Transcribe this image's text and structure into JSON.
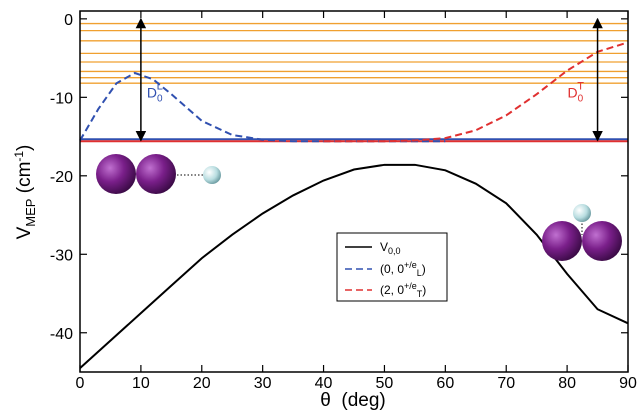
{
  "chart_data": {
    "type": "line",
    "xlabel": [
      "θ",
      "  (deg)"
    ],
    "ylabel": [
      "V",
      "MEP",
      " (cm",
      "-1",
      ")"
    ],
    "xlim": [
      0,
      90
    ],
    "ylim": [
      -45,
      1
    ],
    "xticks": [
      0,
      10,
      20,
      30,
      40,
      50,
      60,
      70,
      80,
      90
    ],
    "yticks": [
      0,
      -10,
      -20,
      -30,
      -40
    ],
    "horizontal_levels": {
      "color": "#f0a030",
      "values": [
        -0.6,
        -1.5,
        -2.8,
        -4.4,
        -5.5,
        -6.7,
        -7.5,
        -8.2
      ]
    },
    "reference_lines": [
      {
        "color": "#3050b0",
        "value": -15.35
      },
      {
        "color": "#e03030",
        "value": -15.6
      }
    ],
    "series": [
      {
        "name": [
          "V",
          "0,0"
        ],
        "color": "#000000",
        "dash": false,
        "x": [
          0,
          5,
          10,
          15,
          20,
          25,
          30,
          35,
          40,
          45,
          50,
          55,
          60,
          65,
          70,
          75,
          80,
          85,
          90
        ],
        "values": [
          -44.5,
          -41,
          -37.5,
          -34,
          -30.5,
          -27.5,
          -24.8,
          -22.5,
          -20.6,
          -19.2,
          -18.6,
          -18.6,
          -19.3,
          -21,
          -23.5,
          -27.5,
          -32.5,
          -37,
          -38.8
        ]
      },
      {
        "name": [
          "(0, 0",
          "+/e",
          "L",
          ")"
        ],
        "color": "#3050b0",
        "dash": true,
        "x": [
          0,
          3,
          6,
          9,
          12,
          15,
          20,
          25,
          30,
          35,
          40,
          50,
          60
        ],
        "values": [
          -15.5,
          -11.5,
          -8.2,
          -6.9,
          -7.7,
          -9.6,
          -13,
          -14.8,
          -15.4,
          -15.6,
          -15.6,
          -15.6,
          -15.6
        ]
      },
      {
        "name": [
          "(2, 0",
          "+/e",
          "T",
          ")"
        ],
        "color": "#e03030",
        "dash": true,
        "x": [
          40,
          50,
          55,
          60,
          65,
          70,
          75,
          80,
          85,
          90
        ],
        "values": [
          -15.6,
          -15.6,
          -15.5,
          -15.2,
          -14.2,
          -12.3,
          -9.6,
          -6.6,
          -4.2,
          -3.0
        ]
      }
    ],
    "annotations": [
      {
        "text": [
          "D",
          "0",
          "L"
        ],
        "color": "#3050b0",
        "x": 10,
        "y_from": 0,
        "y_to": -15.5
      },
      {
        "text": [
          "D",
          "0",
          "T"
        ],
        "color": "#e03030",
        "x": 85,
        "y_from": 0,
        "y_to": -15.5
      }
    ]
  }
}
